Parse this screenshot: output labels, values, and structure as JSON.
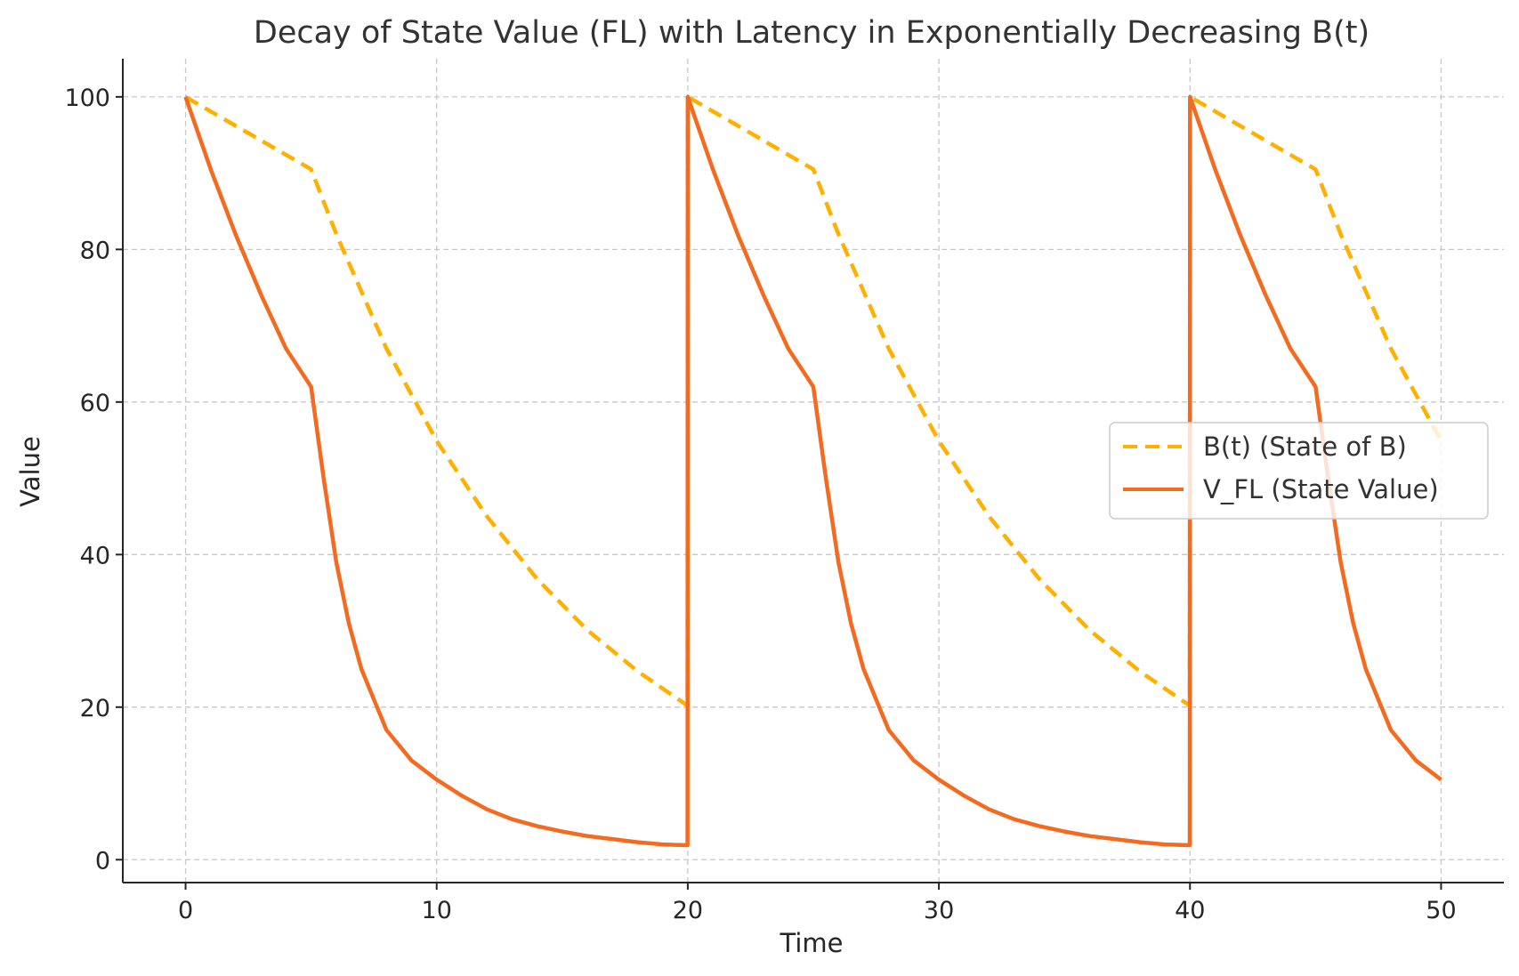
{
  "chart_data": {
    "type": "line",
    "title": "Decay of State Value (FL) with Latency in Exponentially Decreasing B(t)",
    "xlabel": "Time",
    "ylabel": "Value",
    "xlim": [
      -2.5,
      52.5
    ],
    "ylim": [
      -3,
      105
    ],
    "xticks": [
      0,
      10,
      20,
      30,
      40,
      50
    ],
    "yticks": [
      0,
      20,
      40,
      60,
      80,
      100
    ],
    "grid": true,
    "legend_position": "center-right",
    "series": [
      {
        "name": "B(t) (State of B)",
        "label": "B(t) (State of B)",
        "color": "#FFB000",
        "style": "dashed",
        "x": [
          0,
          5,
          6,
          8,
          10,
          12,
          14,
          16,
          18,
          19.99,
          20,
          25,
          26,
          28,
          30,
          32,
          34,
          36,
          38,
          39.99,
          40,
          45,
          46,
          48,
          50
        ],
        "values": [
          100,
          90.5,
          82.0,
          67.0,
          54.9,
          45.0,
          36.8,
          30.1,
          24.7,
          20.2,
          100,
          90.5,
          82.0,
          67.0,
          54.9,
          45.0,
          36.8,
          30.1,
          24.7,
          20.2,
          100,
          90.5,
          82.0,
          67.0,
          54.9
        ]
      },
      {
        "name": "V_FL (State Value)",
        "label": "V_FL (State Value)",
        "color": "#F26B20",
        "style": "solid",
        "x": [
          0,
          1,
          2,
          3,
          4,
          5,
          5.5,
          6,
          6.5,
          7,
          8,
          9,
          10,
          11,
          12,
          13,
          14,
          15,
          16,
          17,
          18,
          19,
          19.99,
          20,
          21,
          22,
          23,
          24,
          25,
          25.5,
          26,
          26.5,
          27,
          28,
          29,
          30,
          31,
          32,
          33,
          34,
          35,
          36,
          37,
          38,
          39,
          39.99,
          40,
          41,
          42,
          43,
          44,
          45,
          45.5,
          46,
          46.5,
          47,
          48,
          49,
          50
        ],
        "values": [
          100,
          90.5,
          81.9,
          74.1,
          67.0,
          62.0,
          50.0,
          39.0,
          31.0,
          25.0,
          17.0,
          13.0,
          10.5,
          8.4,
          6.6,
          5.3,
          4.4,
          3.7,
          3.1,
          2.7,
          2.3,
          2.0,
          1.9,
          100,
          90.5,
          81.9,
          74.1,
          67.0,
          62.0,
          50.0,
          39.0,
          31.0,
          25.0,
          17.0,
          13.0,
          10.5,
          8.4,
          6.6,
          5.3,
          4.4,
          3.7,
          3.1,
          2.7,
          2.3,
          2.0,
          1.9,
          100,
          90.5,
          81.9,
          74.1,
          67.0,
          62.0,
          50.0,
          39.0,
          31.0,
          25.0,
          17.0,
          13.0,
          10.5
        ]
      }
    ]
  }
}
